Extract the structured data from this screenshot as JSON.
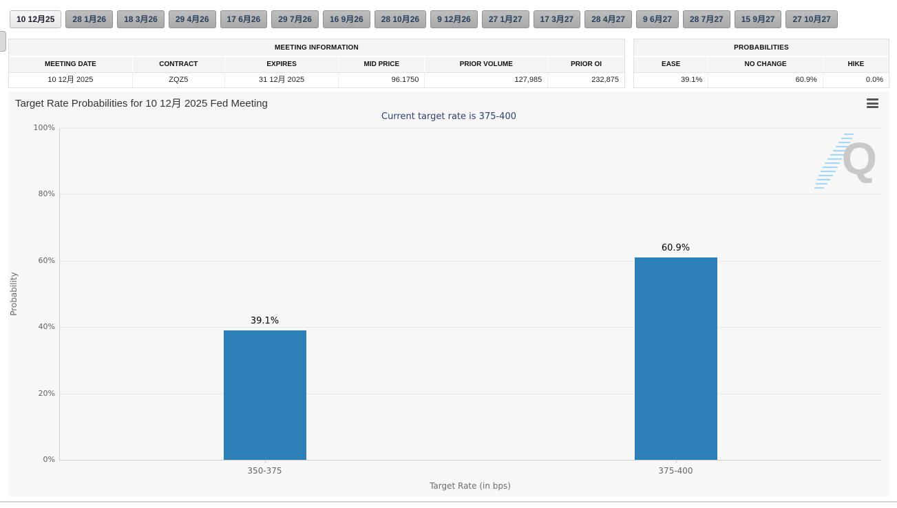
{
  "tab_bar": {
    "tabs": [
      {
        "label": "10 12月25",
        "active": true
      },
      {
        "label": "28 1月26",
        "active": false
      },
      {
        "label": "18 3月26",
        "active": false
      },
      {
        "label": "29 4月26",
        "active": false
      },
      {
        "label": "17 6月26",
        "active": false
      },
      {
        "label": "29 7月26",
        "active": false
      },
      {
        "label": "16 9月26",
        "active": false
      },
      {
        "label": "28 10月26",
        "active": false
      },
      {
        "label": "9 12月26",
        "active": false
      },
      {
        "label": "27 1月27",
        "active": false
      },
      {
        "label": "17 3月27",
        "active": false
      },
      {
        "label": "28 4月27",
        "active": false
      },
      {
        "label": "9 6月27",
        "active": false
      },
      {
        "label": "28 7月27",
        "active": false
      },
      {
        "label": "15 9月27",
        "active": false
      },
      {
        "label": "27 10月27",
        "active": false
      }
    ]
  },
  "meeting_information": {
    "title": "MEETING INFORMATION",
    "columns": [
      "MEETING DATE",
      "CONTRACT",
      "EXPIRES",
      "MID PRICE",
      "PRIOR VOLUME",
      "PRIOR OI"
    ],
    "values": [
      "10 12月 2025",
      "ZQZ5",
      "31 12月 2025",
      "96.1750",
      "127,985",
      "232,875"
    ],
    "value_alignments": [
      "center",
      "center",
      "center",
      "right",
      "right",
      "right"
    ]
  },
  "probabilities": {
    "title": "PROBABILITIES",
    "columns": [
      "EASE",
      "NO CHANGE",
      "HIKE"
    ],
    "values": [
      "39.1%",
      "60.9%",
      "0.0%"
    ],
    "value_alignments": [
      "right",
      "right",
      "right"
    ]
  },
  "chart": {
    "title": "Target Rate Probabilities for 10 12月 2025 Fed Meeting",
    "subtitle": "Current target rate is 375-400",
    "menu_icon": "hamburger-menu-icon",
    "watermark_letter": "Q"
  },
  "chart_data": {
    "type": "bar",
    "title": "Target Rate Probabilities for 10 12月 2025 Fed Meeting",
    "subtitle": "Current target rate is 375-400",
    "categories": [
      "350-375",
      "375-400"
    ],
    "values": [
      39.1,
      60.9
    ],
    "data_labels": [
      "39.1%",
      "60.9%"
    ],
    "xlabel": "Target Rate (in bps)",
    "ylabel": "Probability",
    "ylim": [
      0,
      100
    ],
    "ytick_labels": [
      "0%",
      "20%",
      "40%",
      "60%",
      "80%",
      "100%"
    ],
    "grid": "dotted-horizontal",
    "legend": "none",
    "bar_color": "#2d7fb8"
  },
  "colors": {
    "bar": "#2d7fb8",
    "chart_background": "#f7f7f7",
    "subtitle_text": "#2f3e6d",
    "tab_inactive_bg": "#b1b1b1",
    "tab_active_bg": "#f0f0f0",
    "table_header_bg": "#f4f4f4",
    "gridline": "#d6d6d6",
    "axis_line": "#cccccc",
    "watermark_gray": "#c9c9c9",
    "watermark_blue": "#a9d7f2"
  }
}
